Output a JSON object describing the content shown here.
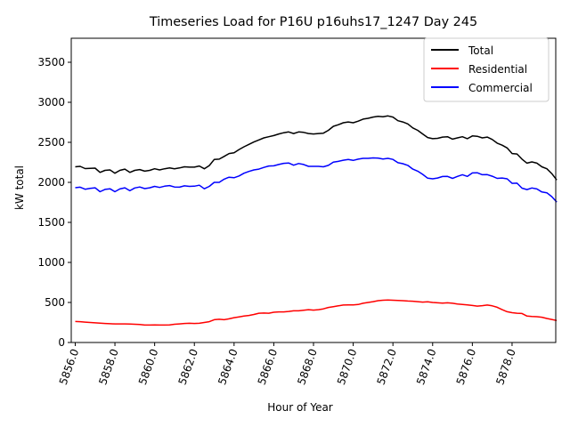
{
  "chart_data": {
    "type": "line",
    "title": "Timeseries Load for P16U p16uhs17_1247  Day 245",
    "xlabel": "Hour of Year",
    "ylabel": "kW total",
    "xlim": [
      5855.8,
      5880.2
    ],
    "ylim": [
      0,
      3800
    ],
    "x_start": 5856,
    "x_step": 0.25,
    "xticks": [
      5856,
      5858,
      5860,
      5862,
      5864,
      5866,
      5868,
      5870,
      5872,
      5874,
      5876,
      5878
    ],
    "xtick_labels": [
      "5856.0",
      "5858.0",
      "5860.0",
      "5862.0",
      "5864.0",
      "5866.0",
      "5868.0",
      "5870.0",
      "5872.0",
      "5874.0",
      "5876.0",
      "5878.0"
    ],
    "yticks": [
      0,
      500,
      1000,
      1500,
      2000,
      2500,
      3000,
      3500
    ],
    "ytick_labels": [
      "0",
      "500",
      "1000",
      "1500",
      "2000",
      "2500",
      "3000",
      "3500"
    ],
    "legend_position": "top-right",
    "series": [
      {
        "name": "Total",
        "color": "#000000",
        "values": [
          2195,
          2200,
          2172,
          2175,
          2178,
          2125,
          2150,
          2155,
          2115,
          2150,
          2165,
          2125,
          2150,
          2160,
          2140,
          2150,
          2170,
          2155,
          2170,
          2180,
          2170,
          2180,
          2195,
          2190,
          2190,
          2205,
          2170,
          2210,
          2285,
          2290,
          2325,
          2360,
          2370,
          2410,
          2445,
          2475,
          2505,
          2530,
          2555,
          2570,
          2585,
          2605,
          2620,
          2630,
          2610,
          2630,
          2625,
          2610,
          2605,
          2610,
          2615,
          2650,
          2700,
          2720,
          2745,
          2755,
          2745,
          2765,
          2790,
          2800,
          2815,
          2825,
          2820,
          2830,
          2815,
          2770,
          2755,
          2730,
          2680,
          2650,
          2605,
          2560,
          2545,
          2550,
          2565,
          2570,
          2540,
          2555,
          2570,
          2545,
          2580,
          2575,
          2555,
          2565,
          2535,
          2490,
          2465,
          2430,
          2360,
          2355,
          2290,
          2240,
          2255,
          2240,
          2195,
          2170,
          2110,
          2030
        ]
      },
      {
        "name": "Residential",
        "color": "#ff0000",
        "values": [
          262,
          260,
          255,
          250,
          246,
          242,
          238,
          235,
          232,
          232,
          232,
          230,
          228,
          225,
          218,
          218,
          220,
          218,
          218,
          220,
          228,
          232,
          238,
          240,
          238,
          240,
          250,
          260,
          285,
          290,
          285,
          295,
          310,
          320,
          330,
          338,
          350,
          365,
          368,
          365,
          378,
          382,
          382,
          388,
          395,
          395,
          402,
          410,
          405,
          410,
          420,
          438,
          448,
          458,
          468,
          470,
          470,
          475,
          490,
          500,
          510,
          522,
          528,
          530,
          528,
          525,
          522,
          518,
          515,
          510,
          505,
          508,
          500,
          495,
          492,
          495,
          490,
          480,
          475,
          470,
          462,
          455,
          460,
          468,
          458,
          440,
          410,
          385,
          372,
          365,
          362,
          330,
          325,
          322,
          315,
          300,
          288,
          275
        ]
      },
      {
        "name": "Commercial",
        "color": "#0000ff",
        "values": [
          1933,
          1940,
          1915,
          1925,
          1932,
          1883,
          1912,
          1920,
          1883,
          1918,
          1932,
          1895,
          1930,
          1942,
          1922,
          1932,
          1950,
          1937,
          1952,
          1960,
          1942,
          1940,
          1957,
          1950,
          1952,
          1965,
          1920,
          1950,
          2000,
          2000,
          2040,
          2065,
          2058,
          2080,
          2115,
          2137,
          2155,
          2165,
          2187,
          2205,
          2207,
          2223,
          2238,
          2242,
          2215,
          2235,
          2223,
          2200,
          2200,
          2200,
          2195,
          2212,
          2252,
          2262,
          2277,
          2285,
          2275,
          2290,
          2300,
          2300,
          2305,
          2303,
          2292,
          2300,
          2287,
          2245,
          2233,
          2212,
          2165,
          2140,
          2100,
          2052,
          2045,
          2055,
          2073,
          2075,
          2050,
          2075,
          2095,
          2075,
          2118,
          2120,
          2095,
          2097,
          2077,
          2050,
          2055,
          2045,
          1988,
          1990,
          1928,
          1910,
          1930,
          1918,
          1880,
          1870,
          1822,
          1755
        ]
      }
    ]
  }
}
